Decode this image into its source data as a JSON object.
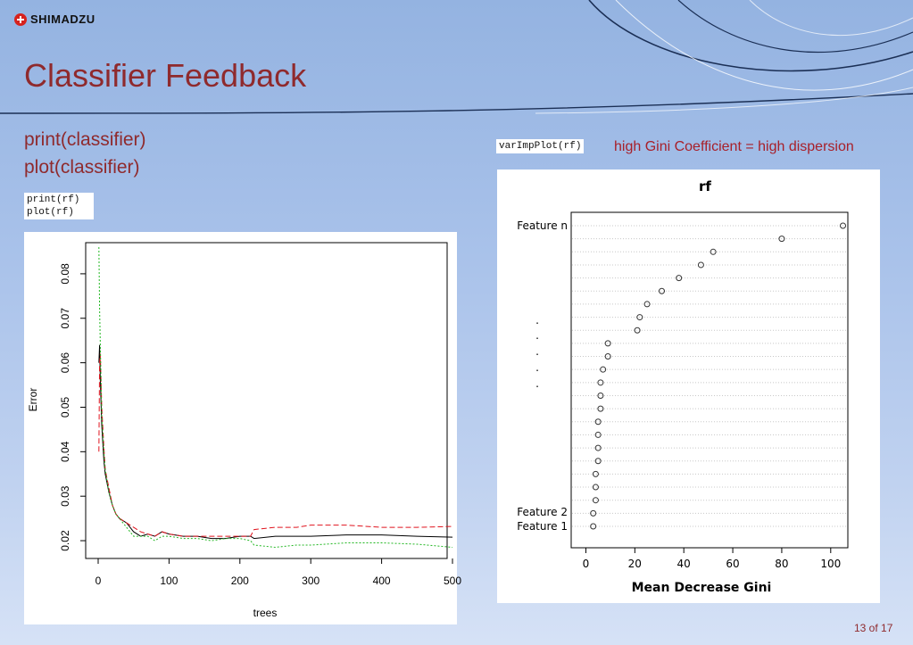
{
  "brand": {
    "logo_text": "SHIMADZU"
  },
  "slide": {
    "title": "Classifier Feedback",
    "subheading": [
      "print(classifier)",
      "plot(classifier)"
    ],
    "left_code": [
      "print(rf)",
      "plot(rf)"
    ],
    "right_code": "varImpPlot(rf)",
    "right_note": "high Gini Coefficient = high dispersion",
    "page_number": "13 of 17"
  },
  "colors": {
    "title": "#8f2a2d",
    "note": "#a8202a",
    "oob": "#000000",
    "class1": "#e0141e",
    "class2": "#22b722"
  },
  "chart_data": [
    {
      "type": "line",
      "xlabel": "trees",
      "ylabel": "Error",
      "xlim": [
        0,
        500
      ],
      "ylim": [
        0.016,
        0.087
      ],
      "x_ticks": [
        0,
        100,
        200,
        300,
        400,
        500
      ],
      "y_ticks": [
        0.02,
        0.03,
        0.04,
        0.05,
        0.06,
        0.07,
        0.08
      ],
      "x": [
        1,
        2,
        3,
        5,
        8,
        10,
        15,
        20,
        25,
        30,
        40,
        50,
        60,
        70,
        80,
        90,
        100,
        120,
        140,
        160,
        180,
        200,
        215,
        220,
        250,
        280,
        300,
        350,
        400,
        450,
        500
      ],
      "series": [
        {
          "values": [
            0.06,
            0.064,
            0.056,
            0.046,
            0.038,
            0.035,
            0.031,
            0.028,
            0.026,
            0.025,
            0.024,
            0.022,
            0.021,
            0.0215,
            0.021,
            0.022,
            0.0215,
            0.021,
            0.021,
            0.0205,
            0.0205,
            0.021,
            0.021,
            0.0205,
            0.021,
            0.021,
            0.021,
            0.0213,
            0.0213,
            0.021,
            0.0208
          ]
        },
        {
          "values": [
            0.04,
            0.06,
            0.062,
            0.05,
            0.041,
            0.036,
            0.032,
            0.028,
            0.026,
            0.025,
            0.024,
            0.023,
            0.022,
            0.0215,
            0.021,
            0.022,
            0.0215,
            0.021,
            0.021,
            0.021,
            0.021,
            0.021,
            0.021,
            0.0225,
            0.023,
            0.023,
            0.0235,
            0.0235,
            0.023,
            0.023,
            0.0232
          ]
        },
        {
          "values": [
            0.086,
            0.072,
            0.064,
            0.048,
            0.04,
            0.036,
            0.031,
            0.028,
            0.026,
            0.025,
            0.023,
            0.021,
            0.021,
            0.021,
            0.02,
            0.021,
            0.021,
            0.0205,
            0.0205,
            0.02,
            0.0205,
            0.0205,
            0.02,
            0.019,
            0.0185,
            0.019,
            0.019,
            0.0195,
            0.0195,
            0.0192,
            0.0185
          ]
        }
      ]
    },
    {
      "type": "scatter",
      "title": "rf",
      "xlabel": "Mean Decrease Gini",
      "xlim": [
        -6,
        107
      ],
      "x_ticks": [
        0,
        20,
        40,
        60,
        80,
        100
      ],
      "y_labels": [
        "Feature n",
        ".",
        ".",
        ".",
        ".",
        ".",
        "Feature 2",
        "Feature 1"
      ],
      "values": [
        105,
        80,
        52,
        47,
        38,
        31,
        25,
        22,
        21,
        9,
        9,
        7,
        6,
        6,
        6,
        5,
        5,
        5,
        5,
        4,
        4,
        4,
        3,
        3
      ]
    }
  ]
}
